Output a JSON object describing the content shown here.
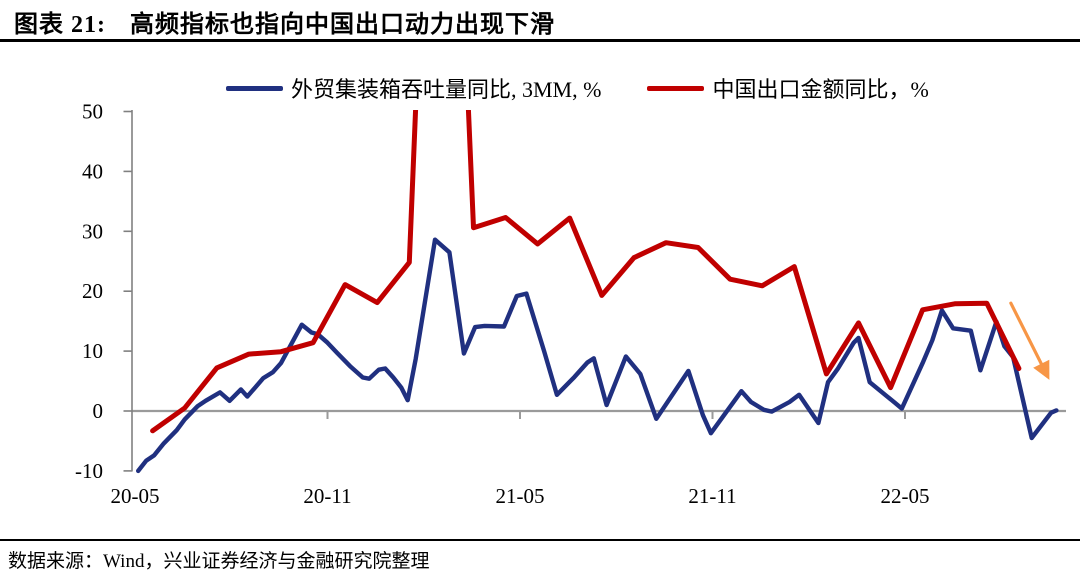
{
  "page": {
    "title_prefix": "图表 21:",
    "title_text": "高频指标也指向中国出口动力出现下滑",
    "source_note": "数据来源：Wind，兴业证券经济与金融研究院整理"
  },
  "chart_data": {
    "type": "line",
    "title": "高频指标也指向中国出口动力出现下滑",
    "ylim": [
      -10,
      50
    ],
    "y_ticks": [
      50,
      40,
      30,
      20,
      10,
      0,
      -10
    ],
    "x_axis": {
      "unit": "months since 2020-05 (labels YY-MM)",
      "tick_labels": [
        "20-05",
        "20-11",
        "21-05",
        "21-11",
        "22-05"
      ],
      "tick_month_index": [
        0,
        6,
        12,
        18,
        24
      ],
      "x_span": "2020-05 to 2022-10"
    },
    "grid": "zero-line only",
    "legend_position": "top-center",
    "series": [
      {
        "name": "外贸集装箱吞吐量同比, 3MM, %",
        "color": "#203080",
        "points_month_value": [
          [
            0.1,
            -10
          ],
          [
            0.35,
            -8.3
          ],
          [
            0.6,
            -7.4
          ],
          [
            0.9,
            -5.4
          ],
          [
            1.3,
            -3.2
          ],
          [
            1.55,
            -1.4
          ],
          [
            1.95,
            0.8
          ],
          [
            2.2,
            1.7
          ],
          [
            2.65,
            3.1
          ],
          [
            2.95,
            1.7
          ],
          [
            3.3,
            3.6
          ],
          [
            3.5,
            2.4
          ],
          [
            4.0,
            5.5
          ],
          [
            4.3,
            6.5
          ],
          [
            4.55,
            8.0
          ],
          [
            5.2,
            14.4
          ],
          [
            5.5,
            13.1
          ],
          [
            5.7,
            12.8
          ],
          [
            6.0,
            11.4
          ],
          [
            6.3,
            9.7
          ],
          [
            6.7,
            7.5
          ],
          [
            7.1,
            5.6
          ],
          [
            7.3,
            5.4
          ],
          [
            7.6,
            6.9
          ],
          [
            7.8,
            7.1
          ],
          [
            8.05,
            5.6
          ],
          [
            8.3,
            3.9
          ],
          [
            8.5,
            1.8
          ],
          [
            8.75,
            8.7
          ],
          [
            9.35,
            28.6
          ],
          [
            9.8,
            26.5
          ],
          [
            10.25,
            9.6
          ],
          [
            10.6,
            14.0
          ],
          [
            10.9,
            14.2
          ],
          [
            11.5,
            14.1
          ],
          [
            11.9,
            19.2
          ],
          [
            12.2,
            19.6
          ],
          [
            12.75,
            10.0
          ],
          [
            13.15,
            2.7
          ],
          [
            13.7,
            5.7
          ],
          [
            14.1,
            8.1
          ],
          [
            14.3,
            8.8
          ],
          [
            14.7,
            1.0
          ],
          [
            15.3,
            9.1
          ],
          [
            15.75,
            6.2
          ],
          [
            16.25,
            -1.3
          ],
          [
            17.25,
            6.7
          ],
          [
            17.7,
            -0.7
          ],
          [
            17.95,
            -3.7
          ],
          [
            18.9,
            3.3
          ],
          [
            19.2,
            1.5
          ],
          [
            19.6,
            0.2
          ],
          [
            19.85,
            -0.1
          ],
          [
            20.4,
            1.5
          ],
          [
            20.7,
            2.7
          ],
          [
            21.3,
            -2.0
          ],
          [
            21.6,
            4.8
          ],
          [
            21.9,
            7.0
          ],
          [
            22.4,
            11.4
          ],
          [
            22.55,
            12.2
          ],
          [
            22.9,
            4.8
          ],
          [
            23.7,
            1.3
          ],
          [
            23.9,
            0.4
          ],
          [
            24.55,
            8.0
          ],
          [
            24.85,
            11.8
          ],
          [
            25.15,
            16.8
          ],
          [
            25.5,
            13.8
          ],
          [
            26.05,
            13.4
          ],
          [
            26.35,
            6.8
          ],
          [
            26.85,
            14.9
          ],
          [
            27.1,
            10.8
          ],
          [
            27.37,
            9.0
          ],
          [
            27.95,
            -4.5
          ],
          [
            28.55,
            -0.3
          ],
          [
            28.72,
            0.1
          ]
        ]
      },
      {
        "name": "中国出口金额同比，%",
        "color": "#C00000",
        "start_month": "2020-05",
        "month_offset": 0.55,
        "monthly_values": [
          -3.3,
          0.5,
          7.2,
          9.5,
          9.9,
          11.4,
          21.1,
          18.1,
          24.8,
          155,
          30.6,
          32.3,
          27.9,
          32.2,
          19.3,
          25.6,
          28.1,
          27.3,
          22.0,
          20.9,
          24.1,
          6.2,
          14.7,
          3.9,
          16.9,
          17.9,
          18.0,
          7.1
        ],
        "note": "2021-02 spike (~155) exceeds axis max and is clipped at chart top"
      }
    ],
    "annotation_arrow": {
      "color": "#F79646",
      "from": [
        27.3,
        18.0
      ],
      "to": [
        28.5,
        5.2
      ]
    }
  },
  "colors": {
    "axis": "#808080",
    "zero_line": "#9A9A9A",
    "text": "#000000"
  }
}
